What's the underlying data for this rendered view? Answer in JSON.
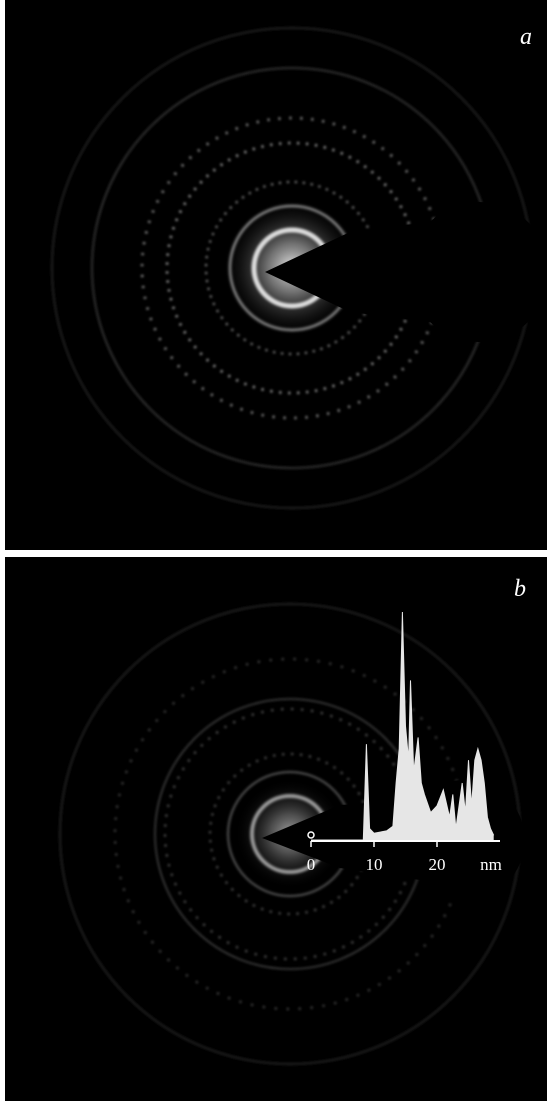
{
  "panels": [
    {
      "label": "a"
    },
    {
      "label": "b"
    }
  ],
  "chart_data": {
    "type": "area",
    "xlabel": "nm",
    "x": [
      0,
      7,
      8.3,
      8.8,
      9.3,
      10,
      12,
      13,
      13.5,
      14,
      14.5,
      15,
      15.5,
      15.8,
      16.3,
      17,
      17.5,
      18,
      19,
      20,
      21,
      22,
      22.5,
      23,
      24,
      24.5,
      25,
      25.5,
      26,
      26.5,
      27,
      27.5,
      28,
      28.5,
      29
    ],
    "values": [
      0,
      0,
      0,
      42,
      5,
      3,
      4,
      6,
      25,
      40,
      100,
      50,
      35,
      70,
      30,
      45,
      25,
      20,
      12,
      15,
      22,
      10,
      20,
      5,
      25,
      12,
      35,
      15,
      35,
      40,
      35,
      25,
      10,
      5,
      2
    ],
    "color": "#e6e6e6",
    "xlim": [
      0,
      30
    ],
    "xticks": [
      0,
      10,
      20
    ],
    "ylim": [
      0,
      100
    ]
  }
}
